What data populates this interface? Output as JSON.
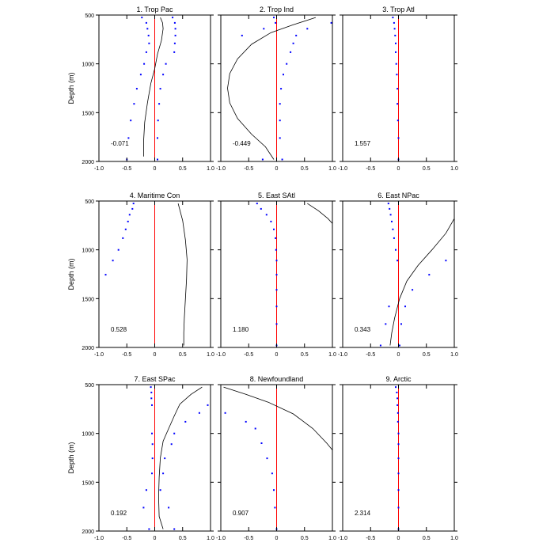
{
  "chart_data": {
    "type": "line",
    "ylabel": "Depth (m)",
    "x_ticks": [
      "-1.0",
      "-0.5",
      "0",
      "0.5",
      "1.0"
    ],
    "y_ticks": [
      "500",
      "1000",
      "1500",
      "2000"
    ],
    "xlim": [
      -1.0,
      1.0
    ],
    "ylim": [
      500,
      2000
    ],
    "y_inverted": true,
    "colors": {
      "profile": "#000000",
      "points": "#0000ff",
      "zero_line": "#ff0000"
    },
    "panels": [
      {
        "title": "1. Trop Pac",
        "value_label": "-0.071",
        "line": [
          [
            0.1,
            525
          ],
          [
            0.14,
            580
          ],
          [
            0.15,
            640
          ],
          [
            0.12,
            760
          ],
          [
            0.05,
            900
          ],
          [
            0.0,
            1050
          ],
          [
            -0.07,
            1200
          ],
          [
            -0.13,
            1400
          ],
          [
            -0.18,
            1600
          ],
          [
            -0.2,
            1800
          ],
          [
            -0.2,
            1950
          ]
        ],
        "points": [
          [
            -0.23,
            525
          ],
          [
            0.32,
            525
          ],
          [
            -0.15,
            580
          ],
          [
            0.36,
            580
          ],
          [
            -0.13,
            640
          ],
          [
            0.37,
            640
          ],
          [
            -0.11,
            710
          ],
          [
            0.37,
            710
          ],
          [
            -0.1,
            790
          ],
          [
            0.36,
            790
          ],
          [
            -0.15,
            880
          ],
          [
            0.35,
            880
          ],
          [
            -0.19,
            1000
          ],
          [
            0.2,
            1000
          ],
          [
            -0.25,
            1110
          ],
          [
            0.15,
            1110
          ],
          [
            -0.32,
            1255
          ],
          [
            0.1,
            1255
          ],
          [
            -0.37,
            1410
          ],
          [
            0.08,
            1410
          ],
          [
            -0.43,
            1580
          ],
          [
            0.06,
            1580
          ],
          [
            -0.47,
            1760
          ],
          [
            0.05,
            1760
          ],
          [
            -0.5,
            1980
          ],
          [
            0.05,
            1980
          ]
        ]
      },
      {
        "title": "2. Trop Ind",
        "value_label": "-0.449",
        "line": [
          [
            0.7,
            525
          ],
          [
            0.3,
            600
          ],
          [
            -0.1,
            680
          ],
          [
            -0.45,
            800
          ],
          [
            -0.7,
            950
          ],
          [
            -0.84,
            1100
          ],
          [
            -0.88,
            1250
          ],
          [
            -0.84,
            1400
          ],
          [
            -0.7,
            1560
          ],
          [
            -0.45,
            1720
          ],
          [
            -0.2,
            1850
          ],
          [
            -0.05,
            1980
          ]
        ],
        "points": [
          [
            -0.05,
            525
          ],
          [
            -0.02,
            580
          ],
          [
            0.98,
            580
          ],
          [
            -0.23,
            640
          ],
          [
            0.55,
            640
          ],
          [
            -0.62,
            710
          ],
          [
            0.35,
            710
          ],
          [
            0.3,
            790
          ],
          [
            0.25,
            880
          ],
          [
            0.18,
            1000
          ],
          [
            0.12,
            1110
          ],
          [
            0.08,
            1255
          ],
          [
            0.06,
            1410
          ],
          [
            0.06,
            1580
          ],
          [
            0.06,
            1760
          ],
          [
            -0.25,
            1980
          ],
          [
            0.1,
            1980
          ]
        ]
      },
      {
        "title": "3. Trop Atl",
        "value_label": "1.557",
        "line": [],
        "points": [
          [
            -0.1,
            525
          ],
          [
            -0.08,
            580
          ],
          [
            -0.07,
            640
          ],
          [
            -0.06,
            710
          ],
          [
            -0.05,
            790
          ],
          [
            -0.05,
            880
          ],
          [
            -0.04,
            1000
          ],
          [
            -0.03,
            1110
          ],
          [
            -0.02,
            1255
          ],
          [
            -0.02,
            1410
          ],
          [
            -0.01,
            1580
          ],
          [
            0.0,
            1760
          ],
          [
            0.0,
            1980
          ]
        ]
      },
      {
        "title": "4. Maritime Con",
        "value_label": "0.528",
        "line": [
          [
            0.42,
            525
          ],
          [
            0.5,
            700
          ],
          [
            0.55,
            900
          ],
          [
            0.58,
            1100
          ],
          [
            0.57,
            1300
          ],
          [
            0.55,
            1500
          ],
          [
            0.53,
            1700
          ],
          [
            0.52,
            1850
          ],
          [
            0.52,
            1980
          ]
        ],
        "points": [
          [
            -0.38,
            525
          ],
          [
            -0.4,
            580
          ],
          [
            -0.45,
            640
          ],
          [
            -0.48,
            710
          ],
          [
            -0.52,
            790
          ],
          [
            -0.57,
            880
          ],
          [
            -0.65,
            1000
          ],
          [
            -0.75,
            1110
          ],
          [
            -0.88,
            1255
          ]
        ]
      },
      {
        "title": "5. East SAtl",
        "value_label": "1.180",
        "line": [
          [
            0.55,
            525
          ],
          [
            0.75,
            600
          ],
          [
            0.92,
            680
          ],
          [
            1.0,
            730
          ]
        ],
        "points": [
          [
            -0.35,
            525
          ],
          [
            -0.28,
            580
          ],
          [
            -0.18,
            640
          ],
          [
            -0.1,
            710
          ],
          [
            -0.05,
            790
          ],
          [
            -0.02,
            880
          ],
          [
            -0.01,
            1000
          ],
          [
            0.0,
            1110
          ],
          [
            0.0,
            1255
          ],
          [
            0.0,
            1410
          ],
          [
            0.0,
            1580
          ],
          [
            0.0,
            1760
          ],
          [
            0.0,
            1980
          ]
        ]
      },
      {
        "title": "6. East NPac",
        "value_label": "0.343",
        "line": [
          [
            1.0,
            680
          ],
          [
            0.85,
            830
          ],
          [
            0.6,
            1000
          ],
          [
            0.35,
            1160
          ],
          [
            0.15,
            1320
          ],
          [
            0.02,
            1500
          ],
          [
            -0.07,
            1700
          ],
          [
            -0.12,
            1850
          ],
          [
            -0.15,
            1980
          ]
        ],
        "points": [
          [
            -0.18,
            525
          ],
          [
            -0.16,
            580
          ],
          [
            -0.14,
            640
          ],
          [
            -0.12,
            710
          ],
          [
            -0.1,
            790
          ],
          [
            -0.08,
            880
          ],
          [
            -0.05,
            1000
          ],
          [
            -0.02,
            1110
          ],
          [
            0.55,
            1255
          ],
          [
            0.25,
            1410
          ],
          [
            0.12,
            1580
          ],
          [
            0.05,
            1760
          ],
          [
            0.85,
            1110
          ],
          [
            -0.17,
            1580
          ],
          [
            -0.23,
            1760
          ],
          [
            -0.32,
            1980
          ],
          [
            0.02,
            1980
          ]
        ]
      },
      {
        "title": "7. East SPac",
        "value_label": "0.192",
        "line": [
          [
            0.85,
            525
          ],
          [
            0.65,
            600
          ],
          [
            0.45,
            700
          ],
          [
            0.35,
            820
          ],
          [
            0.25,
            950
          ],
          [
            0.15,
            1080
          ],
          [
            0.1,
            1250
          ],
          [
            0.08,
            1450
          ],
          [
            0.07,
            1650
          ],
          [
            0.08,
            1850
          ],
          [
            0.15,
            1980
          ]
        ],
        "points": [
          [
            -0.07,
            525
          ],
          [
            -0.06,
            580
          ],
          [
            -0.06,
            640
          ],
          [
            -0.05,
            710
          ],
          [
            0.95,
            710
          ],
          [
            0.8,
            790
          ],
          [
            0.55,
            880
          ],
          [
            -0.05,
            1000
          ],
          [
            0.35,
            1000
          ],
          [
            -0.04,
            1110
          ],
          [
            0.3,
            1110
          ],
          [
            -0.04,
            1255
          ],
          [
            0.18,
            1255
          ],
          [
            -0.05,
            1410
          ],
          [
            0.15,
            1410
          ],
          [
            -0.15,
            1580
          ],
          [
            0.1,
            1580
          ],
          [
            -0.2,
            1760
          ],
          [
            0.25,
            1760
          ],
          [
            -0.1,
            1980
          ],
          [
            0.35,
            1980
          ]
        ]
      },
      {
        "title": "8. Newfoundland",
        "value_label": "0.907",
        "line": [
          [
            -0.95,
            525
          ],
          [
            -0.55,
            600
          ],
          [
            -0.15,
            680
          ],
          [
            0.3,
            800
          ],
          [
            0.65,
            950
          ],
          [
            0.9,
            1100
          ],
          [
            1.0,
            1170
          ]
        ],
        "points": [
          [
            -0.92,
            790
          ],
          [
            -0.55,
            880
          ],
          [
            -0.38,
            950
          ],
          [
            -0.27,
            1100
          ],
          [
            -0.17,
            1255
          ],
          [
            -0.08,
            1410
          ],
          [
            -0.05,
            1580
          ],
          [
            -0.03,
            1760
          ],
          [
            0.0,
            1980
          ]
        ]
      },
      {
        "title": "9. Arctic",
        "value_label": "2.314",
        "line": [],
        "points": [
          [
            -0.05,
            525
          ],
          [
            -0.03,
            580
          ],
          [
            -0.02,
            640
          ],
          [
            -0.02,
            710
          ],
          [
            -0.01,
            790
          ],
          [
            -0.01,
            880
          ],
          [
            0.0,
            1000
          ],
          [
            0.0,
            1110
          ],
          [
            0.0,
            1255
          ],
          [
            0.0,
            1410
          ],
          [
            0.0,
            1580
          ],
          [
            0.0,
            1760
          ],
          [
            0.0,
            1980
          ]
        ]
      }
    ]
  }
}
